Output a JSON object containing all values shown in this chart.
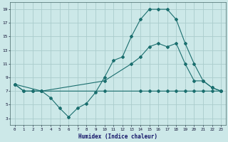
{
  "xlabel": "Humidex (Indice chaleur)",
  "bg_color": "#cce8e8",
  "grid_color": "#aacccc",
  "line_color": "#1a6e6e",
  "xlim": [
    -0.5,
    23.5
  ],
  "ylim": [
    2.0,
    20.0
  ],
  "yticks": [
    3,
    5,
    7,
    9,
    11,
    13,
    15,
    17,
    19
  ],
  "xticks": [
    0,
    1,
    2,
    3,
    4,
    5,
    6,
    7,
    8,
    9,
    10,
    11,
    12,
    13,
    14,
    15,
    16,
    17,
    18,
    19,
    20,
    21,
    22,
    23
  ],
  "line1_x": [
    0,
    1,
    2,
    3,
    4,
    5,
    6,
    7,
    8,
    9,
    10,
    11,
    12,
    13,
    14,
    15,
    16,
    17,
    18,
    19,
    20,
    21,
    22,
    23
  ],
  "line1_y": [
    8,
    7,
    7,
    7,
    6.0,
    4.5,
    3.2,
    4.5,
    5.2,
    6.8,
    9.0,
    11.5,
    12.0,
    15.0,
    17.5,
    19,
    19,
    19,
    17.5,
    14.0,
    11.0,
    8.5,
    7.5,
    7.0
  ],
  "line2_x": [
    0,
    1,
    2,
    3,
    10,
    14,
    15,
    16,
    17,
    18,
    19,
    20,
    21,
    22,
    23
  ],
  "line2_y": [
    8,
    7,
    7,
    7,
    7,
    7,
    7,
    7,
    7,
    7,
    7,
    7,
    7,
    7,
    7
  ],
  "line3_x": [
    0,
    3,
    10,
    13,
    14,
    15,
    16,
    17,
    18,
    19,
    20,
    21,
    22,
    23
  ],
  "line3_y": [
    8,
    7,
    8.5,
    11,
    12,
    13.5,
    14.0,
    13.5,
    14.0,
    11.0,
    8.5,
    8.5,
    7.5,
    7.0
  ]
}
